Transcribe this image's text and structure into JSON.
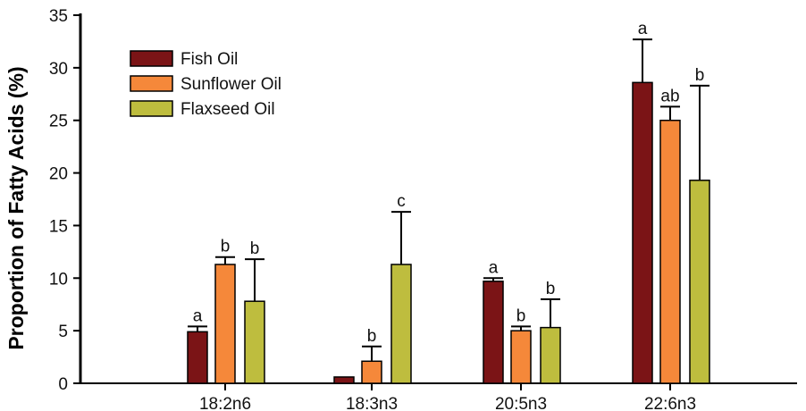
{
  "chart_data": {
    "type": "bar",
    "title": "",
    "xlabel": "",
    "ylabel": "Proportion of Fatty Acids (%)",
    "ylim": [
      0,
      35
    ],
    "yticks": [
      0,
      5,
      10,
      15,
      20,
      25,
      30,
      35
    ],
    "grid": false,
    "legend_position": "top-left",
    "categories": [
      "18:2n6",
      "18:3n3",
      "20:5n3",
      "22:6n3"
    ],
    "series": [
      {
        "name": "Fish Oil",
        "color": "#7B1416",
        "values": [
          4.9,
          0.6,
          9.7,
          28.6
        ],
        "errors": [
          0.5,
          0.0,
          0.3,
          4.1
        ],
        "letters": [
          "a",
          "",
          "a",
          "a"
        ]
      },
      {
        "name": "Sunflower Oil",
        "color": "#F5883A",
        "values": [
          11.3,
          2.1,
          5.0,
          25.0
        ],
        "errors": [
          0.7,
          1.4,
          0.4,
          1.3
        ],
        "letters": [
          "b",
          "b",
          "b",
          "ab"
        ]
      },
      {
        "name": "Flaxseed Oil",
        "color": "#BEBD3E",
        "values": [
          7.8,
          11.3,
          5.3,
          19.3
        ],
        "errors": [
          4.0,
          5.0,
          2.7,
          9.0
        ],
        "letters": [
          "b",
          "c",
          "b",
          "b"
        ]
      }
    ]
  }
}
